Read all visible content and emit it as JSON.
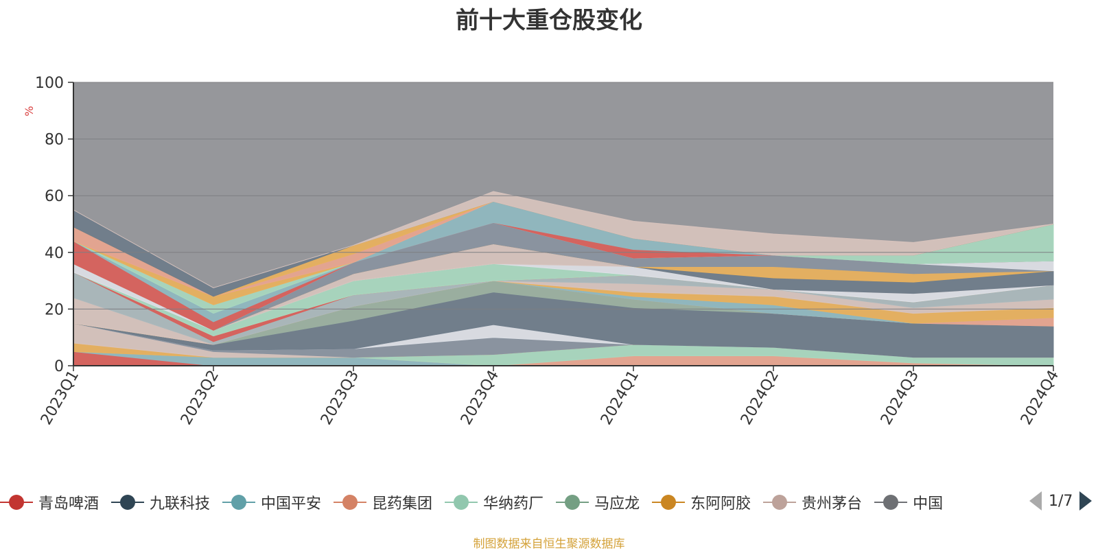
{
  "chart_data": {
    "type": "area",
    "title": "前十大重仓股变化",
    "ylabel": "%",
    "ylim": [
      0,
      100
    ],
    "yticks": [
      0,
      20,
      40,
      60,
      80,
      100
    ],
    "categories": [
      "2023Q1",
      "2023Q2",
      "2023Q3",
      "2023Q4",
      "2024Q1",
      "2024Q2",
      "2024Q3",
      "2024Q4"
    ],
    "background_series_color": "#96979b",
    "stacked_bands": [
      {
        "color": "#d9605a",
        "values": [
          5,
          0,
          0,
          0,
          0,
          0,
          0,
          0
        ]
      },
      {
        "color": "#8fb8c0",
        "values": [
          0,
          3,
          3,
          0,
          0,
          0,
          0,
          0
        ]
      },
      {
        "color": "#e8a58f",
        "values": [
          0,
          0,
          0,
          0,
          3.5,
          3.5,
          1,
          0
        ]
      },
      {
        "color": "#a8d8bf",
        "values": [
          0,
          0,
          0,
          4,
          4,
          3,
          2,
          3
        ]
      },
      {
        "color": "#9ab0a0",
        "values": [
          0,
          0,
          0,
          0,
          0,
          0,
          0,
          0
        ]
      },
      {
        "color": "#e9b15c",
        "values": [
          3,
          0,
          0,
          0,
          0,
          0,
          0,
          0
        ]
      },
      {
        "color": "#d7c3bd",
        "values": [
          7,
          2,
          0,
          0,
          0,
          0,
          0,
          0
        ]
      },
      {
        "color": "#8993a0",
        "values": [
          0,
          0.5,
          3,
          6,
          0,
          0,
          0,
          0
        ]
      },
      {
        "color": "#dde0e6",
        "values": [
          0,
          0,
          0,
          4.5,
          0,
          0,
          0,
          0
        ]
      },
      {
        "color": "#6e7c8a",
        "values": [
          0,
          2,
          10,
          11.5,
          13,
          12,
          12,
          11
        ]
      },
      {
        "color": "#9ab0a0",
        "values": [
          0,
          0,
          5,
          4,
          3,
          0,
          0,
          0
        ]
      },
      {
        "color": "#e8a58f",
        "values": [
          0,
          0,
          0,
          0,
          0,
          0,
          0,
          3
        ]
      },
      {
        "color": "#8fb8c0",
        "values": [
          0,
          0,
          0,
          0,
          1,
          3,
          0,
          0
        ]
      },
      {
        "color": "#e9b15c",
        "values": [
          0,
          0,
          0,
          0,
          1.5,
          3,
          3.5,
          3.5
        ]
      },
      {
        "color": "#d7c3bd",
        "values": [
          9,
          0,
          0,
          0,
          3,
          2.5,
          2,
          3
        ]
      },
      {
        "color": "#aab8bc",
        "values": [
          9,
          1,
          4,
          0,
          3,
          0,
          2,
          5
        ]
      },
      {
        "color": "#d9605a",
        "values": [
          0,
          2,
          0,
          0,
          0,
          0,
          0,
          0
        ]
      },
      {
        "color": "#e8a58f",
        "values": [
          0,
          0,
          0,
          0,
          0,
          0,
          0,
          0
        ]
      },
      {
        "color": "#a8d8bf",
        "values": [
          0,
          2,
          5,
          6,
          0,
          0,
          0,
          0
        ]
      },
      {
        "color": "#dde0e6",
        "values": [
          3,
          0,
          0,
          0,
          3,
          0,
          3,
          0
        ]
      },
      {
        "color": "#d7c3bd",
        "values": [
          0,
          0,
          2.5,
          7,
          0,
          0,
          0,
          0
        ]
      },
      {
        "color": "#6e7c8a",
        "values": [
          0,
          0,
          0,
          0,
          0,
          4,
          4,
          5
        ]
      },
      {
        "color": "#e9b15c",
        "values": [
          0,
          0,
          0,
          0,
          0,
          4,
          3,
          0
        ]
      },
      {
        "color": "#8993a0",
        "values": [
          0,
          0,
          4,
          7.5,
          3,
          4,
          3.5,
          0
        ]
      },
      {
        "color": "#dde0e6",
        "values": [
          0,
          0,
          0,
          0,
          0,
          0,
          0,
          3.5
        ]
      },
      {
        "color": "#d9605a",
        "values": [
          8,
          3,
          0,
          0,
          3,
          0,
          0,
          0
        ]
      },
      {
        "color": "#8fb8c0",
        "values": [
          0,
          3,
          0,
          7.5,
          4,
          0,
          0,
          0
        ]
      },
      {
        "color": "#a8d8bf",
        "values": [
          0,
          3,
          0,
          0,
          0,
          0,
          3,
          13
        ]
      },
      {
        "color": "#e9b15c",
        "values": [
          0,
          3,
          0,
          0,
          0,
          0,
          0,
          0
        ]
      },
      {
        "color": "#e8a58f",
        "values": [
          5,
          0,
          3,
          0,
          0,
          0,
          0,
          0
        ]
      },
      {
        "color": "#e9b15c",
        "values": [
          0,
          0,
          3,
          0,
          0,
          0,
          0,
          0
        ]
      },
      {
        "color": "#6e7c8a",
        "values": [
          6,
          3,
          0,
          0,
          0,
          0,
          0,
          0
        ]
      },
      {
        "color": "#d7c3bd",
        "values": [
          0,
          0,
          0,
          3.5,
          6,
          7.5,
          4.5,
          0
        ]
      }
    ],
    "legend": [
      {
        "name": "青岛啤酒",
        "color": "#c23531"
      },
      {
        "name": "九联科技",
        "color": "#2f4554"
      },
      {
        "name": "中国平安",
        "color": "#61a0a8"
      },
      {
        "name": "昆药集团",
        "color": "#d48265"
      },
      {
        "name": "华纳药厂",
        "color": "#91c7ae"
      },
      {
        "name": "马应龙",
        "color": "#749f83"
      },
      {
        "name": "东阿阿胶",
        "color": "#ca8622"
      },
      {
        "name": "贵州茅台",
        "color": "#bda29a"
      },
      {
        "name": "中国",
        "color": "#6e7074"
      }
    ],
    "legend_page": "1/7",
    "source": "制图数据来自恒生聚源数据库"
  }
}
